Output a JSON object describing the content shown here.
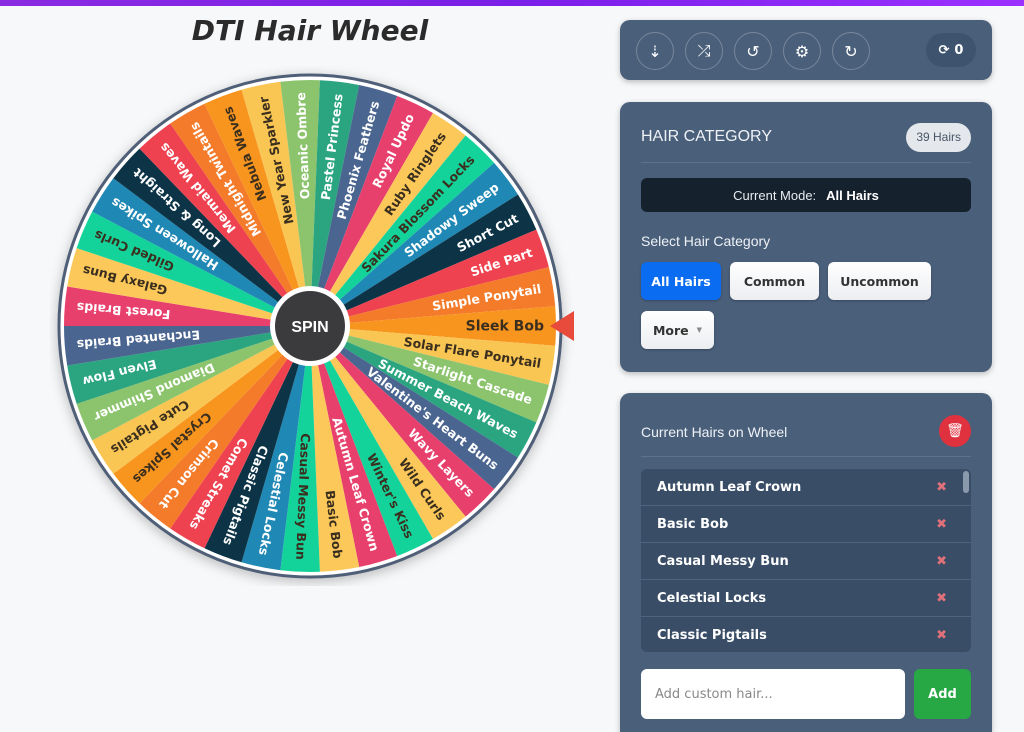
{
  "title": "DTI Hair Wheel",
  "accent": "#7b1fe8",
  "toolbar": {
    "buttons": [
      {
        "name": "sort-az-icon",
        "glyph": "⇣"
      },
      {
        "name": "shuffle-icon",
        "glyph": "⤮"
      },
      {
        "name": "history-icon",
        "glyph": "↺"
      },
      {
        "name": "gear-icon",
        "glyph": "⚙"
      },
      {
        "name": "redo-icon",
        "glyph": "↻"
      }
    ],
    "spin_count_icon": "sync-icon",
    "spin_count": "0"
  },
  "wheel": {
    "spin_label": "SPIN",
    "selected": "Sleek Bob",
    "palette": [
      "#e8406c",
      "#fcc85a",
      "#14d39a",
      "#1f88b4",
      "#0c3346",
      "#ef4250",
      "#f37b2a",
      "#f8951f",
      "#f9c553",
      "#8cc46d",
      "#2aa57f",
      "#4a6590"
    ],
    "dark_text_colors": [
      "#fcc85a",
      "#14d39a",
      "#f8951f",
      "#f9c553"
    ],
    "pointer_color": "#e84a3c"
  },
  "category": {
    "title": "HAIR CATEGORY",
    "count_badge": "39 Hairs",
    "mode_label": "Current Mode:",
    "mode_value": "All Hairs",
    "select_label": "Select Hair Category",
    "buttons": [
      "All Hairs",
      "Common",
      "Uncommon",
      "More"
    ],
    "more_caret": "▼"
  },
  "current": {
    "title": "Current Hairs on Wheel",
    "remove_glyph": "✖",
    "input_placeholder": "Add custom hair...",
    "add_label": "Add"
  },
  "hairs": [
    "Autumn Leaf Crown",
    "Basic Bob",
    "Casual Messy Bun",
    "Celestial Locks",
    "Classic Pigtails",
    "Comet Streaks",
    "Crimson Cut",
    "Crystal Spikes",
    "Cute Pigtails",
    "Diamond Shimmer",
    "Elven Flow",
    "Enchanted Braids",
    "Forest Braids",
    "Galaxy Buns",
    "Gilded Curls",
    "Halloween Spikes",
    "Long & Straight",
    "Mermaid Waves",
    "Midnight Twintails",
    "Nebula Waves",
    "New Year Sparkler",
    "Oceanic Ombre",
    "Pastel Princess",
    "Phoenix Feathers",
    "Royal Updo",
    "Ruby Ringlets",
    "Sakura Blossom Locks",
    "Shadowy Sweep",
    "Short Cut",
    "Side Part",
    "Simple Ponytail",
    "Sleek Bob",
    "Solar Flare Ponytail",
    "Starlight Cascade",
    "Summer Beach Waves",
    "Valentine's Heart Buns",
    "Wavy Layers",
    "Wild Curls",
    "Winter's Kiss"
  ]
}
